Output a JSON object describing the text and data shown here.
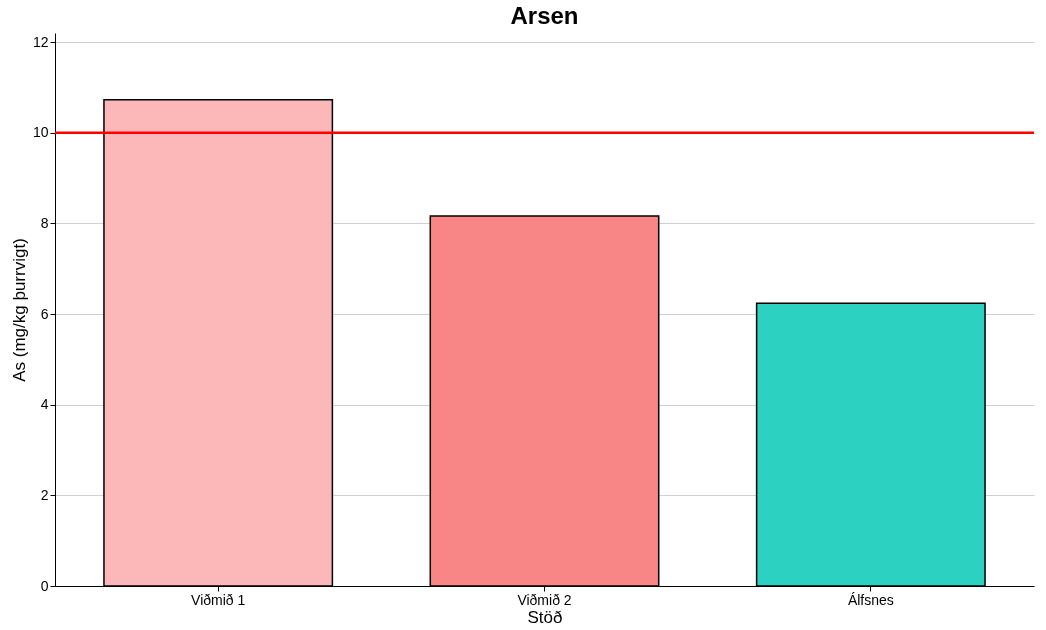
{
  "chart_data": {
    "type": "bar",
    "title": "Arsen",
    "xlabel": "Stöð",
    "ylabel": "As (mg/kg þurrvigt)",
    "categories": [
      "Viðmið 1",
      "Viðmið 2",
      "Álfsnes"
    ],
    "values": [
      10.73,
      8.16,
      6.24
    ],
    "colors": [
      "#fcb8b8",
      "#f88686",
      "#2dd1c1"
    ],
    "ylim": [
      0,
      12.2
    ],
    "yticks": [
      0,
      2,
      4,
      6,
      8,
      10,
      12
    ],
    "grid": "y",
    "ref_lines": [
      {
        "axis": "y",
        "value": 10,
        "color": "#ff0000"
      }
    ]
  }
}
